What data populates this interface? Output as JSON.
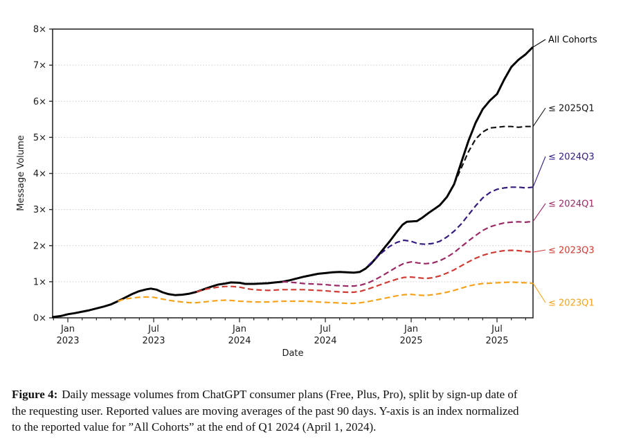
{
  "caption": {
    "label": "Figure 4:",
    "lines": [
      "Daily message volumes from ChatGPT consumer plans (Free, Plus, Pro), split by sign-up date of",
      "the requesting user. Reported values are moving averages of the past 90 days. Y-axis is an index normalized",
      "to the reported value for ”All Cohorts” at the end of Q1 2024 (April 1, 2024)."
    ]
  },
  "chart_data": {
    "type": "line",
    "title": "",
    "xlabel": "Date",
    "ylabel": "Message Volume",
    "ylim": [
      0,
      8
    ],
    "grid": "horizontal-dotted",
    "legend_position": "right-of-plot-end-labels",
    "x_unit": "months since Jan 1, 2023",
    "x_range_months": [
      -1.1,
      32.5
    ],
    "ytick_labels": [
      "0×",
      "1×",
      "2×",
      "3×",
      "4×",
      "5×",
      "6×",
      "7×",
      "8×"
    ],
    "xticks": [
      {
        "t": 0,
        "line1": "Jan",
        "line2": "2023"
      },
      {
        "t": 6,
        "line1": "Jul",
        "line2": "2023"
      },
      {
        "t": 12,
        "line1": "Jan",
        "line2": "2024"
      },
      {
        "t": 18,
        "line1": "Jul",
        "line2": "2024"
      },
      {
        "t": 24,
        "line1": "Jan",
        "line2": "2025"
      },
      {
        "t": 30,
        "line1": "Jul",
        "line2": "2025"
      }
    ],
    "series": [
      {
        "name": "All Cohorts",
        "color": "#000000",
        "dash": "solid",
        "width": 3,
        "points": [
          [
            -1.1,
            0.02
          ],
          [
            -0.5,
            0.05
          ],
          [
            0,
            0.1
          ],
          [
            0.5,
            0.13
          ],
          [
            1,
            0.17
          ],
          [
            1.5,
            0.21
          ],
          [
            2,
            0.26
          ],
          [
            2.5,
            0.31
          ],
          [
            3,
            0.37
          ],
          [
            3.5,
            0.46
          ],
          [
            4,
            0.56
          ],
          [
            4.5,
            0.66
          ],
          [
            5,
            0.74
          ],
          [
            5.5,
            0.79
          ],
          [
            5.8,
            0.81
          ],
          [
            6.2,
            0.78
          ],
          [
            6.6,
            0.71
          ],
          [
            7,
            0.66
          ],
          [
            7.5,
            0.63
          ],
          [
            8,
            0.64
          ],
          [
            8.5,
            0.67
          ],
          [
            9,
            0.72
          ],
          [
            9.5,
            0.79
          ],
          [
            10,
            0.86
          ],
          [
            10.5,
            0.92
          ],
          [
            11,
            0.95
          ],
          [
            11.4,
            0.98
          ],
          [
            12,
            0.97
          ],
          [
            12.4,
            0.94
          ],
          [
            13,
            0.94
          ],
          [
            13.5,
            0.95
          ],
          [
            14,
            0.96
          ],
          [
            14.5,
            0.98
          ],
          [
            15,
            1.0
          ],
          [
            15.5,
            1.04
          ],
          [
            16,
            1.09
          ],
          [
            16.5,
            1.14
          ],
          [
            17,
            1.18
          ],
          [
            17.5,
            1.22
          ],
          [
            18,
            1.24
          ],
          [
            18.5,
            1.26
          ],
          [
            19,
            1.27
          ],
          [
            19.5,
            1.26
          ],
          [
            20,
            1.25
          ],
          [
            20.4,
            1.27
          ],
          [
            20.8,
            1.36
          ],
          [
            21.2,
            1.5
          ],
          [
            21.6,
            1.68
          ],
          [
            22,
            1.88
          ],
          [
            22.5,
            2.12
          ],
          [
            23,
            2.38
          ],
          [
            23.4,
            2.58
          ],
          [
            23.7,
            2.66
          ],
          [
            24.4,
            2.68
          ],
          [
            24.8,
            2.78
          ],
          [
            25.2,
            2.9
          ],
          [
            26,
            3.12
          ],
          [
            26.5,
            3.35
          ],
          [
            27,
            3.7
          ],
          [
            27.5,
            4.3
          ],
          [
            28,
            4.9
          ],
          [
            28.5,
            5.4
          ],
          [
            29,
            5.78
          ],
          [
            29.5,
            6.02
          ],
          [
            30,
            6.2
          ],
          [
            30.5,
            6.6
          ],
          [
            31,
            6.95
          ],
          [
            31.5,
            7.15
          ],
          [
            32,
            7.3
          ],
          [
            32.5,
            7.5
          ]
        ]
      },
      {
        "name": "≤ 2025Q1",
        "color": "#131313",
        "dash": "dashed",
        "width": 2.2,
        "points": [
          [
            27,
            3.7
          ],
          [
            27.5,
            4.15
          ],
          [
            28,
            4.6
          ],
          [
            28.5,
            4.95
          ],
          [
            29,
            5.15
          ],
          [
            29.5,
            5.26
          ],
          [
            30,
            5.28
          ],
          [
            30.5,
            5.3
          ],
          [
            31,
            5.3
          ],
          [
            31.5,
            5.28
          ],
          [
            32,
            5.3
          ],
          [
            32.5,
            5.3
          ]
        ]
      },
      {
        "name": "≤ 2024Q3",
        "color": "#341a7e",
        "dash": "dashed",
        "width": 2.2,
        "points": [
          [
            21,
            1.45
          ],
          [
            21.5,
            1.64
          ],
          [
            22,
            1.82
          ],
          [
            22.5,
            1.98
          ],
          [
            23,
            2.09
          ],
          [
            23.5,
            2.15
          ],
          [
            24,
            2.12
          ],
          [
            24.5,
            2.05
          ],
          [
            25,
            2.04
          ],
          [
            25.5,
            2.06
          ],
          [
            26,
            2.12
          ],
          [
            26.5,
            2.24
          ],
          [
            27,
            2.4
          ],
          [
            27.5,
            2.6
          ],
          [
            28,
            2.85
          ],
          [
            28.5,
            3.1
          ],
          [
            29,
            3.32
          ],
          [
            29.5,
            3.47
          ],
          [
            30,
            3.56
          ],
          [
            30.5,
            3.6
          ],
          [
            31,
            3.62
          ],
          [
            31.5,
            3.62
          ],
          [
            32,
            3.6
          ],
          [
            32.5,
            3.62
          ]
        ]
      },
      {
        "name": "≤ 2024Q1",
        "color": "#9a2864",
        "dash": "dashed",
        "width": 2.2,
        "points": [
          [
            15,
            1.0
          ],
          [
            15.5,
            0.99
          ],
          [
            16,
            0.97
          ],
          [
            16.5,
            0.95
          ],
          [
            17,
            0.94
          ],
          [
            17.5,
            0.93
          ],
          [
            18,
            0.92
          ],
          [
            18.5,
            0.9
          ],
          [
            19,
            0.89
          ],
          [
            19.5,
            0.88
          ],
          [
            20,
            0.88
          ],
          [
            20.5,
            0.91
          ],
          [
            21,
            0.97
          ],
          [
            21.5,
            1.06
          ],
          [
            22,
            1.17
          ],
          [
            22.5,
            1.29
          ],
          [
            23,
            1.41
          ],
          [
            23.5,
            1.51
          ],
          [
            24,
            1.55
          ],
          [
            24.5,
            1.52
          ],
          [
            25,
            1.5
          ],
          [
            25.5,
            1.52
          ],
          [
            26,
            1.58
          ],
          [
            26.5,
            1.68
          ],
          [
            27,
            1.81
          ],
          [
            27.5,
            1.97
          ],
          [
            28,
            2.13
          ],
          [
            28.5,
            2.28
          ],
          [
            29,
            2.42
          ],
          [
            29.5,
            2.52
          ],
          [
            30,
            2.58
          ],
          [
            30.5,
            2.63
          ],
          [
            31,
            2.65
          ],
          [
            31.5,
            2.66
          ],
          [
            32,
            2.65
          ],
          [
            32.5,
            2.67
          ]
        ]
      },
      {
        "name": "≤ 2023Q3",
        "color": "#cf3b33",
        "dash": "dashed",
        "width": 2.2,
        "points": [
          [
            9,
            0.72
          ],
          [
            9.5,
            0.78
          ],
          [
            10,
            0.82
          ],
          [
            10.5,
            0.85
          ],
          [
            11,
            0.87
          ],
          [
            11.5,
            0.87
          ],
          [
            12,
            0.85
          ],
          [
            12.5,
            0.81
          ],
          [
            13,
            0.78
          ],
          [
            13.5,
            0.77
          ],
          [
            14,
            0.76
          ],
          [
            14.5,
            0.77
          ],
          [
            15,
            0.78
          ],
          [
            16,
            0.78
          ],
          [
            16.5,
            0.78
          ],
          [
            17,
            0.77
          ],
          [
            17.5,
            0.76
          ],
          [
            18,
            0.75
          ],
          [
            18.5,
            0.73
          ],
          [
            19,
            0.72
          ],
          [
            19.5,
            0.71
          ],
          [
            20,
            0.71
          ],
          [
            20.5,
            0.74
          ],
          [
            21,
            0.8
          ],
          [
            21.5,
            0.87
          ],
          [
            22,
            0.94
          ],
          [
            22.5,
            1.01
          ],
          [
            23,
            1.07
          ],
          [
            23.5,
            1.12
          ],
          [
            24,
            1.13
          ],
          [
            24.5,
            1.11
          ],
          [
            25,
            1.09
          ],
          [
            25.5,
            1.11
          ],
          [
            26,
            1.16
          ],
          [
            26.5,
            1.24
          ],
          [
            27,
            1.33
          ],
          [
            27.5,
            1.44
          ],
          [
            28,
            1.55
          ],
          [
            28.5,
            1.65
          ],
          [
            29,
            1.73
          ],
          [
            29.5,
            1.79
          ],
          [
            30,
            1.83
          ],
          [
            30.5,
            1.86
          ],
          [
            31,
            1.87
          ],
          [
            31.5,
            1.86
          ],
          [
            32,
            1.84
          ],
          [
            32.5,
            1.82
          ]
        ]
      },
      {
        "name": "≤ 2023Q1",
        "color": "#f5a31c",
        "dash": "dashed",
        "width": 2.2,
        "points": [
          [
            3.5,
            0.46
          ],
          [
            4,
            0.52
          ],
          [
            4.5,
            0.55
          ],
          [
            5,
            0.57
          ],
          [
            5.5,
            0.58
          ],
          [
            6,
            0.57
          ],
          [
            6.5,
            0.53
          ],
          [
            7,
            0.49
          ],
          [
            7.5,
            0.46
          ],
          [
            8,
            0.44
          ],
          [
            8.5,
            0.42
          ],
          [
            9,
            0.42
          ],
          [
            9.5,
            0.44
          ],
          [
            10,
            0.46
          ],
          [
            10.5,
            0.48
          ],
          [
            11,
            0.49
          ],
          [
            11.5,
            0.48
          ],
          [
            12,
            0.46
          ],
          [
            12.5,
            0.45
          ],
          [
            13,
            0.44
          ],
          [
            14,
            0.44
          ],
          [
            14.5,
            0.45
          ],
          [
            15,
            0.46
          ],
          [
            16,
            0.46
          ],
          [
            16.5,
            0.46
          ],
          [
            17,
            0.45
          ],
          [
            17.5,
            0.44
          ],
          [
            18,
            0.43
          ],
          [
            18.5,
            0.42
          ],
          [
            19,
            0.41
          ],
          [
            19.5,
            0.4
          ],
          [
            20,
            0.4
          ],
          [
            20.5,
            0.42
          ],
          [
            21,
            0.45
          ],
          [
            21.5,
            0.49
          ],
          [
            22,
            0.53
          ],
          [
            22.5,
            0.57
          ],
          [
            23,
            0.61
          ],
          [
            23.5,
            0.64
          ],
          [
            24,
            0.65
          ],
          [
            24.5,
            0.63
          ],
          [
            25,
            0.62
          ],
          [
            25.5,
            0.64
          ],
          [
            26,
            0.67
          ],
          [
            26.5,
            0.71
          ],
          [
            27,
            0.76
          ],
          [
            27.5,
            0.82
          ],
          [
            28,
            0.88
          ],
          [
            28.5,
            0.92
          ],
          [
            29,
            0.95
          ],
          [
            29.5,
            0.96
          ],
          [
            30,
            0.97
          ],
          [
            30.5,
            0.98
          ],
          [
            31,
            0.99
          ],
          [
            31.5,
            0.98
          ],
          [
            32,
            0.97
          ],
          [
            32.5,
            0.96
          ]
        ]
      }
    ]
  }
}
